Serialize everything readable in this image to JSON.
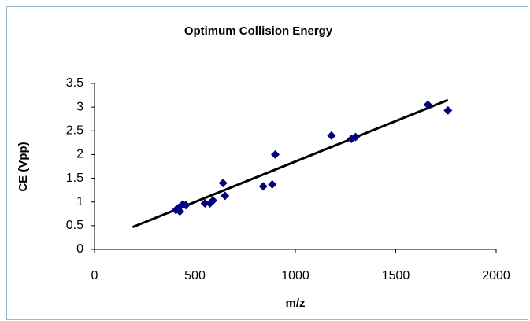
{
  "chart_data": {
    "type": "scatter",
    "title": "Optimum Collision Energy",
    "x_label": "m/z",
    "y_label": "CE (Vpp)",
    "series": [
      {
        "color": "#000080",
        "x": [
          405,
          420,
          425,
          440,
          455,
          550,
          575,
          590,
          640,
          650,
          840,
          885,
          900,
          1180,
          1280,
          1300,
          1660,
          1760
        ],
        "values": [
          0.83,
          0.88,
          0.8,
          0.95,
          0.93,
          0.97,
          0.97,
          1.03,
          1.4,
          1.13,
          1.33,
          1.37,
          2.0,
          2.4,
          2.33,
          2.37,
          3.05,
          2.93
        ]
      }
    ],
    "trendline": {
      "color": "#000000",
      "x": [
        190,
        1760
      ],
      "values": [
        0.47,
        3.15
      ]
    },
    "xlim": [
      0,
      2000
    ],
    "xticks": [
      0,
      500,
      1000,
      1500,
      2000
    ],
    "ylim": [
      0,
      3.5
    ],
    "yticks": [
      0,
      0.5,
      1,
      1.5,
      2,
      2.5,
      3,
      3.5
    ]
  }
}
